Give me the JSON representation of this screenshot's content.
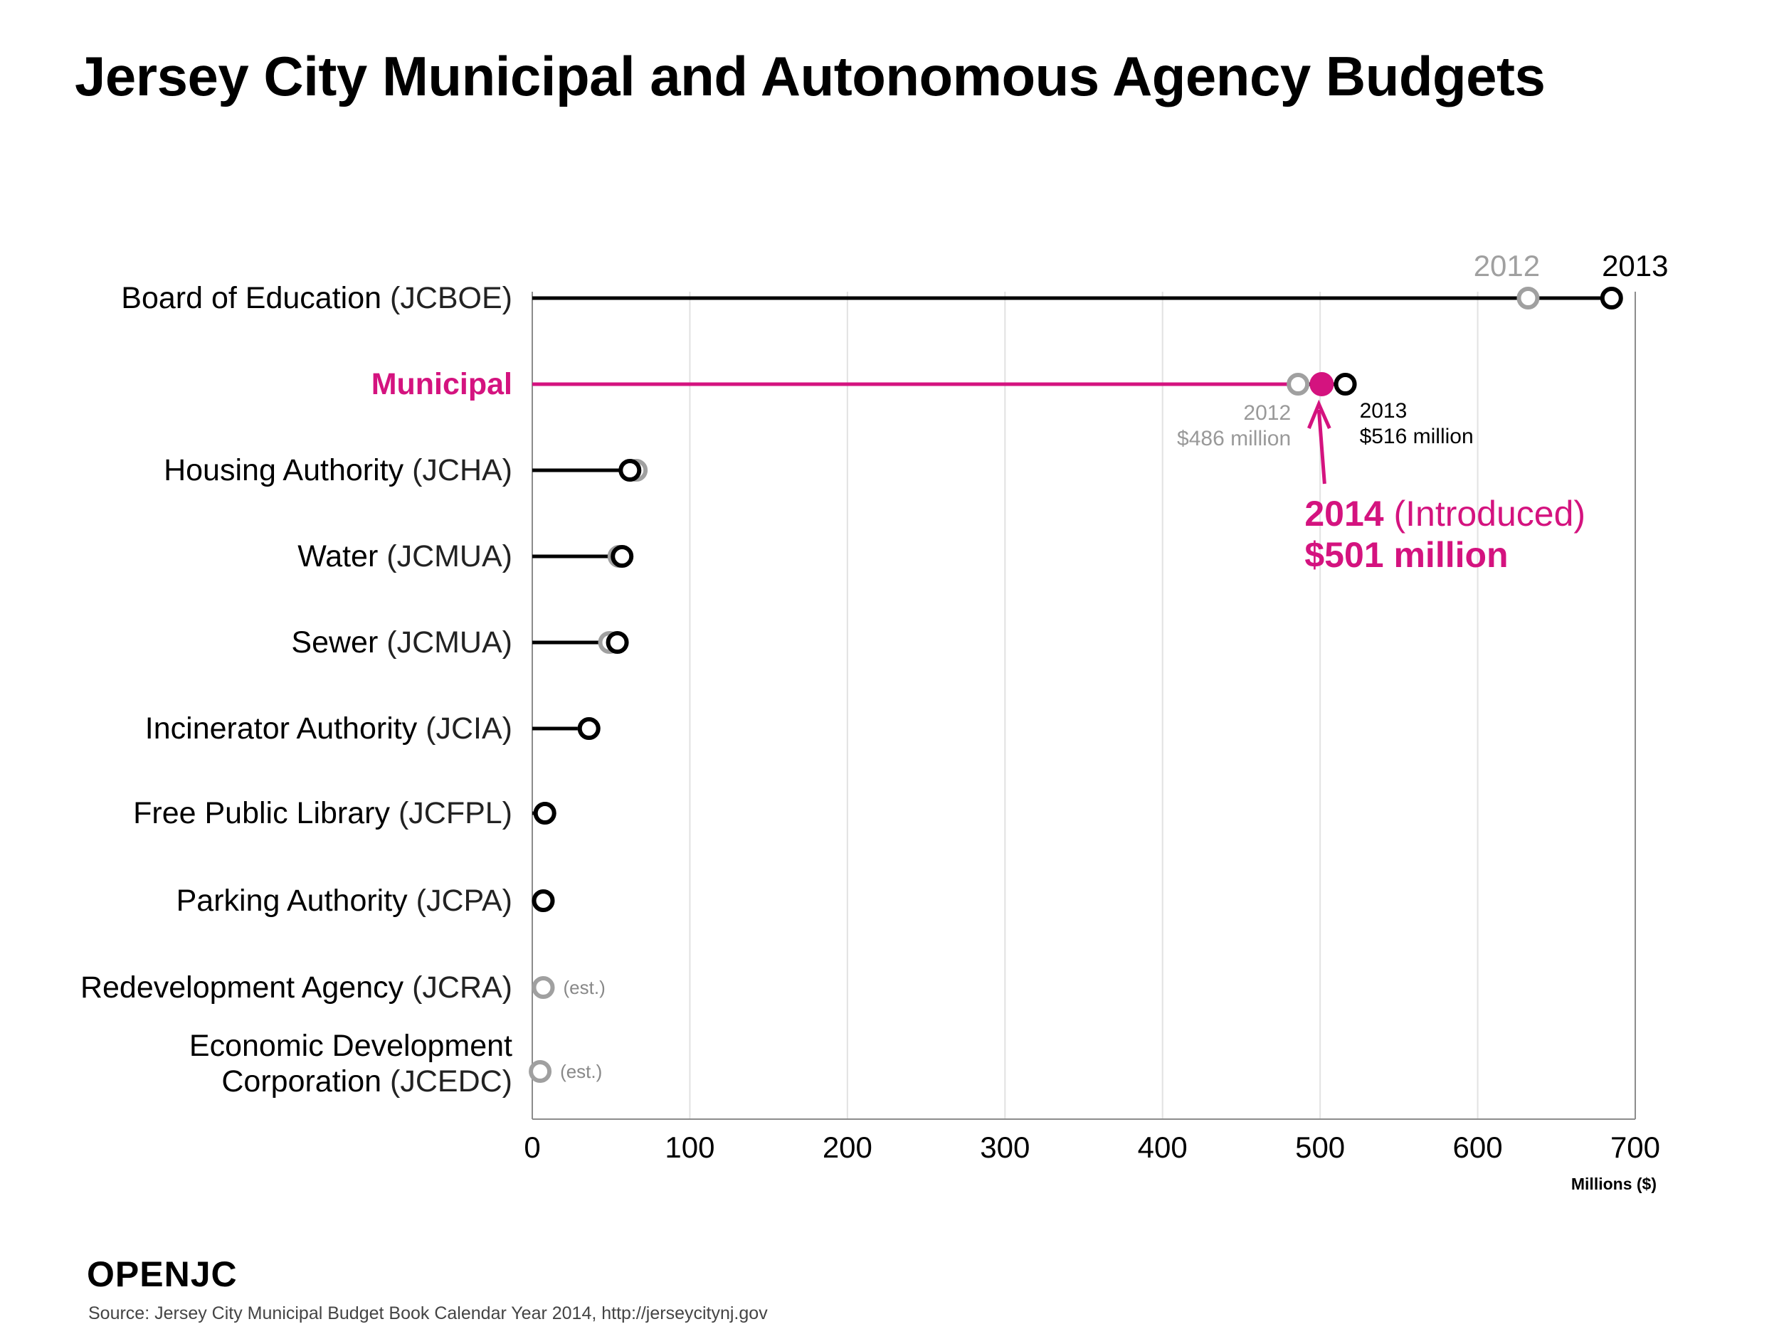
{
  "title": "Jersey City Municipal and Autonomous Agency Budgets",
  "brand": "OPENJC",
  "source": "Source: Jersey City Municipal Budget Book Calendar Year 2014, http://jerseycitynj.gov",
  "colors": {
    "y2012": "#a0a0a0",
    "y2013": "#000000",
    "highlight": "#d4137f",
    "grid": "#e2e2e2"
  },
  "chart_data": {
    "type": "dot-plot",
    "title": "Jersey City Municipal and Autonomous Agency Budgets",
    "xlabel": "Millions ($)",
    "xlim": [
      0,
      700
    ],
    "xticks": [
      "0",
      "100",
      "200",
      "300",
      "400",
      "500",
      "600",
      "700"
    ],
    "xtick_values": [
      0,
      100,
      200,
      300,
      400,
      500,
      600,
      700
    ],
    "grid": true,
    "legend": {
      "y2012": "2012",
      "y2013": "2013"
    },
    "categories": [
      {
        "name": "Board of Education",
        "abbr": "(JCBOE)",
        "v2012": 632,
        "v2013": 685
      },
      {
        "name": "Municipal",
        "abbr": "",
        "highlight": true,
        "v2012": 486,
        "v2013": 516,
        "v2014": 501
      },
      {
        "name": "Housing Authority",
        "abbr": "(JCHA)",
        "v2012": 66,
        "v2013": 62
      },
      {
        "name": "Water",
        "abbr": "(JCMUA)",
        "v2012": 55,
        "v2013": 57
      },
      {
        "name": "Sewer",
        "abbr": "(JCMUA)",
        "v2012": 49,
        "v2013": 54
      },
      {
        "name": "Incinerator Authority",
        "abbr": "(JCIA)",
        "v2012": 36,
        "v2013": 36
      },
      {
        "name": "Free Public Library",
        "abbr": "(JCFPL)",
        "v2012": 8,
        "v2013": 8
      },
      {
        "name": "Parking Authority",
        "abbr": "(JCPA)",
        "v2012": 7,
        "v2013": 7
      },
      {
        "name": "Redevelopment Agency",
        "abbr": "(JCRA)",
        "v2012": 7,
        "note": "(est.)"
      },
      {
        "name_line1": "Economic Development",
        "name": "Corporation",
        "abbr": "(JCEDC)",
        "v2012": 5,
        "note": "(est.)"
      }
    ],
    "annotations": {
      "municipal_2012": {
        "year": "2012",
        "amount": "$486 million"
      },
      "municipal_2013": {
        "year": "2013",
        "amount": "$516 million"
      },
      "municipal_2014": {
        "year": "2014",
        "status": "(Introduced)",
        "amount": "$501 million"
      }
    }
  }
}
